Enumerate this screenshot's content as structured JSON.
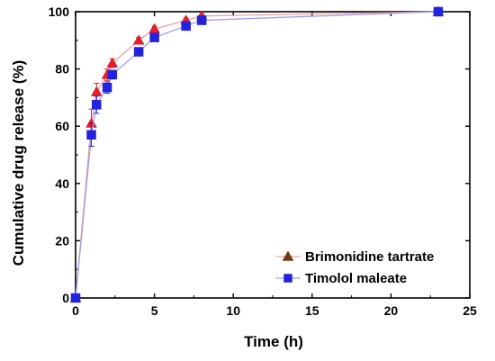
{
  "chart_data": {
    "type": "line",
    "title": "",
    "xlabel": "Time (h)",
    "ylabel": "Cumulative drug release (%)",
    "xlim": [
      0,
      25
    ],
    "ylim": [
      0,
      100
    ],
    "xticks": [
      0,
      5,
      10,
      15,
      20,
      25
    ],
    "yticks": [
      0,
      20,
      40,
      60,
      80,
      100
    ],
    "grid": false,
    "legend_position": "bottom-right",
    "series": [
      {
        "name": "Brimonidine tartrate",
        "marker": "triangle",
        "marker_color": "#e0202a",
        "line_color": "#f0a0a0",
        "x": [
          0,
          1,
          1.33,
          2,
          2.33,
          4,
          5,
          7,
          8,
          23
        ],
        "y": [
          0,
          61,
          72,
          78,
          82,
          90,
          94,
          97,
          98.5,
          100
        ],
        "error": [
          0,
          5,
          3,
          2,
          1.5,
          1,
          1,
          0.8,
          0.6,
          0.5
        ]
      },
      {
        "name": "Timolol maleate",
        "marker": "square",
        "marker_color": "#2222dd",
        "line_color": "#a0a0f0",
        "x": [
          0,
          1,
          1.33,
          2,
          2.33,
          4,
          5,
          7,
          8,
          23
        ],
        "y": [
          0,
          57,
          67.5,
          73.5,
          78,
          86,
          91,
          95,
          97,
          100
        ],
        "error": [
          0,
          4,
          3,
          2,
          1.5,
          1,
          1,
          0.8,
          0.6,
          0.5
        ]
      }
    ]
  }
}
